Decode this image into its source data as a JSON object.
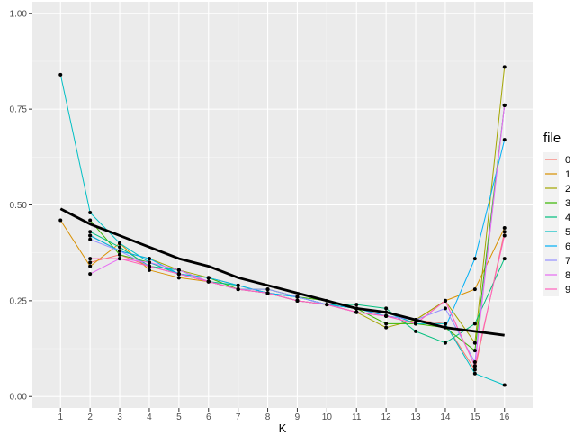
{
  "chart_data": {
    "type": "line",
    "title": "",
    "xlabel": "K",
    "ylabel": "",
    "x": [
      1,
      2,
      3,
      4,
      5,
      6,
      7,
      8,
      9,
      10,
      11,
      12,
      13,
      14,
      15,
      16
    ],
    "x_tick_labels": [
      "1",
      "2",
      "3",
      "4",
      "5",
      "6",
      "7",
      "8",
      "9",
      "10",
      "11",
      "12",
      "13",
      "14",
      "15",
      "16"
    ],
    "y_tick_labels": [
      "0.00",
      "0.25",
      "0.50",
      "0.75",
      "1.00"
    ],
    "ylim": [
      -0.03,
      1.03
    ],
    "xlim": [
      0.05,
      16.95
    ],
    "grid": true,
    "legend": {
      "title": "file",
      "position": "right"
    },
    "series": [
      {
        "name": "0",
        "color": "#F8766D",
        "values": [
          null,
          0.35,
          0.37,
          0.34,
          0.32,
          0.3,
          0.28,
          0.27,
          0.25,
          0.24,
          0.23,
          0.21,
          0.2,
          0.19,
          0.07,
          0.43
        ]
      },
      {
        "name": "1",
        "color": "#D89000",
        "values": [
          0.46,
          0.34,
          0.4,
          0.33,
          0.31,
          0.3,
          0.28,
          0.27,
          0.25,
          0.24,
          0.23,
          0.22,
          0.2,
          0.25,
          0.28,
          0.44
        ]
      },
      {
        "name": "2",
        "color": "#A3A500",
        "values": [
          null,
          0.42,
          0.38,
          0.36,
          0.33,
          0.31,
          0.29,
          0.27,
          0.26,
          0.24,
          0.22,
          0.18,
          0.2,
          0.25,
          0.14,
          0.86
        ]
      },
      {
        "name": "3",
        "color": "#39B600",
        "values": [
          null,
          0.46,
          0.37,
          0.35,
          0.32,
          0.31,
          0.28,
          0.28,
          0.26,
          0.25,
          0.23,
          0.19,
          0.19,
          0.18,
          0.12,
          0.76
        ]
      },
      {
        "name": "4",
        "color": "#00BF7D",
        "values": [
          null,
          0.43,
          0.39,
          0.34,
          0.33,
          0.3,
          0.29,
          0.27,
          0.25,
          0.24,
          0.24,
          0.23,
          0.17,
          0.14,
          0.19,
          0.36
        ]
      },
      {
        "name": "5",
        "color": "#00BFC4",
        "values": [
          0.84,
          0.48,
          0.4,
          0.35,
          0.32,
          0.3,
          0.28,
          0.27,
          0.26,
          0.24,
          0.23,
          0.22,
          0.19,
          0.19,
          0.06,
          0.03
        ]
      },
      {
        "name": "6",
        "color": "#00B0F6",
        "values": [
          null,
          0.42,
          0.38,
          0.36,
          0.32,
          0.31,
          0.29,
          0.27,
          0.26,
          0.24,
          0.23,
          0.21,
          0.2,
          0.18,
          0.36,
          0.67
        ]
      },
      {
        "name": "7",
        "color": "#9590FF",
        "values": [
          null,
          0.41,
          0.38,
          0.34,
          0.32,
          0.3,
          0.28,
          0.28,
          0.26,
          0.24,
          0.22,
          0.21,
          0.2,
          0.23,
          0.09,
          0.76
        ]
      },
      {
        "name": "8",
        "color": "#E76BF3",
        "values": [
          null,
          0.32,
          0.36,
          0.35,
          0.33,
          0.3,
          0.28,
          0.27,
          0.25,
          0.24,
          0.22,
          0.21,
          0.19,
          0.25,
          0.08,
          0.76
        ]
      },
      {
        "name": "9",
        "color": "#FF62BC",
        "values": [
          null,
          0.36,
          0.36,
          0.34,
          0.32,
          0.3,
          0.28,
          0.27,
          0.25,
          0.24,
          0.22,
          0.21,
          0.19,
          0.25,
          0.08,
          0.42
        ]
      }
    ],
    "trend": {
      "color": "#000000",
      "values": [
        0.49,
        0.45,
        0.42,
        0.39,
        0.36,
        0.34,
        0.31,
        0.29,
        0.27,
        0.25,
        0.23,
        0.22,
        0.2,
        0.18,
        0.17,
        0.16
      ]
    }
  }
}
